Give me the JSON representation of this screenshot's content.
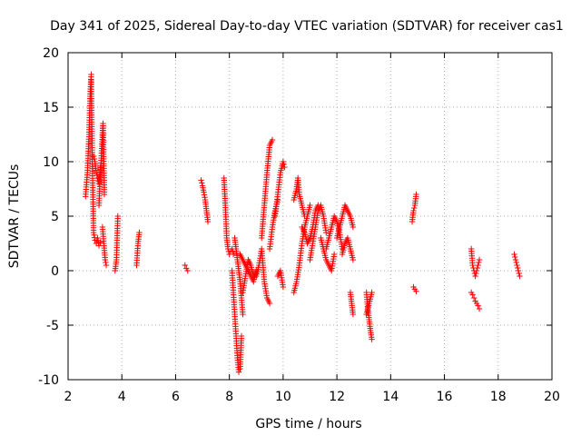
{
  "chart_data": {
    "type": "scatter",
    "title": "Day 341 of 2025, Sidereal Day-to-day VTEC variation (SDTVAR) for receiver cas1",
    "xlabel": "GPS time / hours",
    "ylabel": "SDTVAR / TECUs",
    "xlim": [
      2,
      20
    ],
    "ylim": [
      -10,
      20
    ],
    "xticks": [
      2,
      4,
      6,
      8,
      10,
      12,
      14,
      16,
      18,
      20
    ],
    "yticks": [
      -10,
      -5,
      0,
      5,
      10,
      15,
      20
    ],
    "grid": true,
    "marker": "+",
    "marker_color": "#ff0000",
    "segments": [
      {
        "x": [
          2.65,
          2.72,
          2.78,
          2.82,
          2.86
        ],
        "y": [
          6.8,
          9.0,
          12.5,
          16.0,
          18.0
        ]
      },
      {
        "x": [
          2.86,
          2.9,
          2.95,
          3.0,
          3.05,
          3.1,
          3.15,
          3.2
        ],
        "y": [
          17.5,
          10.0,
          3.5,
          2.8,
          2.5,
          3.0,
          2.3,
          2.6
        ]
      },
      {
        "x": [
          2.95,
          3.0,
          3.05,
          3.1,
          3.15,
          3.2
        ],
        "y": [
          10.5,
          10.0,
          9.0,
          8.5,
          8.0,
          9.5
        ]
      },
      {
        "x": [
          3.15,
          3.2,
          3.25,
          3.3,
          3.35
        ],
        "y": [
          6.0,
          9.0,
          11.0,
          13.5,
          7.0
        ]
      },
      {
        "x": [
          3.28,
          3.33,
          3.38,
          3.42
        ],
        "y": [
          4.0,
          2.5,
          1.0,
          0.5
        ]
      },
      {
        "x": [
          3.75,
          3.8,
          3.85
        ],
        "y": [
          0.0,
          1.0,
          5.0
        ]
      },
      {
        "x": [
          4.55,
          4.6,
          4.65
        ],
        "y": [
          0.5,
          2.5,
          3.5
        ]
      },
      {
        "x": [
          6.35,
          6.4,
          6.45
        ],
        "y": [
          0.5,
          0.2,
          0.0
        ]
      },
      {
        "x": [
          6.95,
          7.0,
          7.05,
          7.1,
          7.15,
          7.2
        ],
        "y": [
          8.3,
          7.8,
          7.2,
          6.5,
          5.5,
          4.5
        ]
      },
      {
        "x": [
          7.8,
          7.85,
          7.9,
          7.95,
          8.0,
          8.05,
          8.1,
          8.15
        ],
        "y": [
          8.5,
          6.0,
          3.0,
          2.0,
          1.5,
          1.8,
          2.0,
          1.5
        ]
      },
      {
        "x": [
          8.1,
          8.15,
          8.2,
          8.25,
          8.3,
          8.35,
          8.4,
          8.45
        ],
        "y": [
          0.0,
          -2.0,
          -4.0,
          -6.0,
          -8.0,
          -9.3,
          -9.0,
          -6.0
        ]
      },
      {
        "x": [
          8.2,
          8.25,
          8.3,
          8.35,
          8.4,
          8.45,
          8.5
        ],
        "y": [
          3.0,
          2.0,
          1.0,
          0.0,
          -1.0,
          -2.5,
          -4.0
        ]
      },
      {
        "x": [
          8.4,
          8.5,
          8.6,
          8.7,
          8.8,
          8.9,
          9.0
        ],
        "y": [
          1.5,
          1.0,
          0.5,
          0.0,
          -0.5,
          -1.0,
          0.0
        ]
      },
      {
        "x": [
          8.5,
          8.6,
          8.7,
          8.8,
          8.9
        ],
        "y": [
          -2.0,
          -0.5,
          1.0,
          0.5,
          -0.5
        ]
      },
      {
        "x": [
          9.0,
          9.1,
          9.2,
          9.3,
          9.4,
          9.5
        ],
        "y": [
          -0.5,
          0.5,
          2.0,
          -1.0,
          -2.5,
          -3.0
        ]
      },
      {
        "x": [
          9.2,
          9.3,
          9.4,
          9.5,
          9.6
        ],
        "y": [
          3.0,
          6.0,
          9.0,
          11.5,
          12.0
        ]
      },
      {
        "x": [
          9.5,
          9.6,
          9.7,
          9.8
        ],
        "y": [
          2.0,
          4.0,
          5.5,
          6.5
        ]
      },
      {
        "x": [
          9.7,
          9.8,
          9.9,
          10.0,
          10.05
        ],
        "y": [
          5.0,
          7.0,
          9.0,
          10.0,
          9.5
        ]
      },
      {
        "x": [
          9.8,
          9.9,
          10.0
        ],
        "y": [
          -0.5,
          0.0,
          -1.5
        ]
      },
      {
        "x": [
          10.4,
          10.5,
          10.6,
          10.7,
          10.8,
          10.9,
          11.0
        ],
        "y": [
          -2.0,
          -1.0,
          0.5,
          2.5,
          4.0,
          5.0,
          6.0
        ]
      },
      {
        "x": [
          10.4,
          10.5,
          10.55,
          10.6,
          10.7,
          10.8
        ],
        "y": [
          6.5,
          7.5,
          8.5,
          7.0,
          6.0,
          5.0
        ]
      },
      {
        "x": [
          10.7,
          10.8,
          10.9,
          11.0,
          11.1,
          11.2,
          11.3
        ],
        "y": [
          4.0,
          3.5,
          2.5,
          3.0,
          4.0,
          5.5,
          6.0
        ]
      },
      {
        "x": [
          11.0,
          11.1,
          11.2,
          11.3,
          11.4,
          11.5,
          11.6
        ],
        "y": [
          1.0,
          2.5,
          4.0,
          5.5,
          6.0,
          5.0,
          3.5
        ]
      },
      {
        "x": [
          11.4,
          11.5,
          11.6,
          11.7,
          11.8,
          11.9
        ],
        "y": [
          3.0,
          2.0,
          1.0,
          0.5,
          0.0,
          1.5
        ]
      },
      {
        "x": [
          11.6,
          11.7,
          11.8,
          11.9,
          12.0,
          12.1,
          12.2
        ],
        "y": [
          2.0,
          3.0,
          4.0,
          5.0,
          4.5,
          3.5,
          2.0
        ]
      },
      {
        "x": [
          12.0,
          12.1,
          12.2,
          12.3,
          12.4,
          12.5,
          12.6
        ],
        "y": [
          3.0,
          4.0,
          5.0,
          6.0,
          5.5,
          5.0,
          4.0
        ]
      },
      {
        "x": [
          12.2,
          12.3,
          12.4,
          12.5,
          12.6
        ],
        "y": [
          1.5,
          2.5,
          3.0,
          2.0,
          1.0
        ]
      },
      {
        "x": [
          12.5,
          12.55,
          12.6
        ],
        "y": [
          -2.0,
          -3.0,
          -4.0
        ]
      },
      {
        "x": [
          13.1,
          13.15,
          13.2,
          13.25,
          13.3
        ],
        "y": [
          -2.0,
          -3.5,
          -4.5,
          -5.5,
          -6.3
        ]
      },
      {
        "x": [
          13.1,
          13.2,
          13.3
        ],
        "y": [
          -4.0,
          -3.0,
          -2.0
        ]
      },
      {
        "x": [
          14.8,
          14.85,
          14.9,
          14.95
        ],
        "y": [
          4.5,
          5.5,
          6.0,
          7.0
        ]
      },
      {
        "x": [
          14.85,
          14.9,
          14.95
        ],
        "y": [
          -1.5,
          -1.7,
          -1.9
        ]
      },
      {
        "x": [
          17.0,
          17.05,
          17.1,
          17.15,
          17.2,
          17.25,
          17.3
        ],
        "y": [
          2.0,
          0.5,
          0.0,
          -0.5,
          0.0,
          0.5,
          1.0
        ]
      },
      {
        "x": [
          17.0,
          17.05,
          17.1,
          17.15,
          17.2,
          17.25,
          17.3
        ],
        "y": [
          -2.0,
          -2.2,
          -2.5,
          -2.8,
          -3.0,
          -3.2,
          -3.5
        ]
      },
      {
        "x": [
          18.6,
          18.65,
          18.7,
          18.75,
          18.8
        ],
        "y": [
          1.5,
          1.0,
          0.5,
          0.0,
          -0.5
        ]
      }
    ]
  }
}
